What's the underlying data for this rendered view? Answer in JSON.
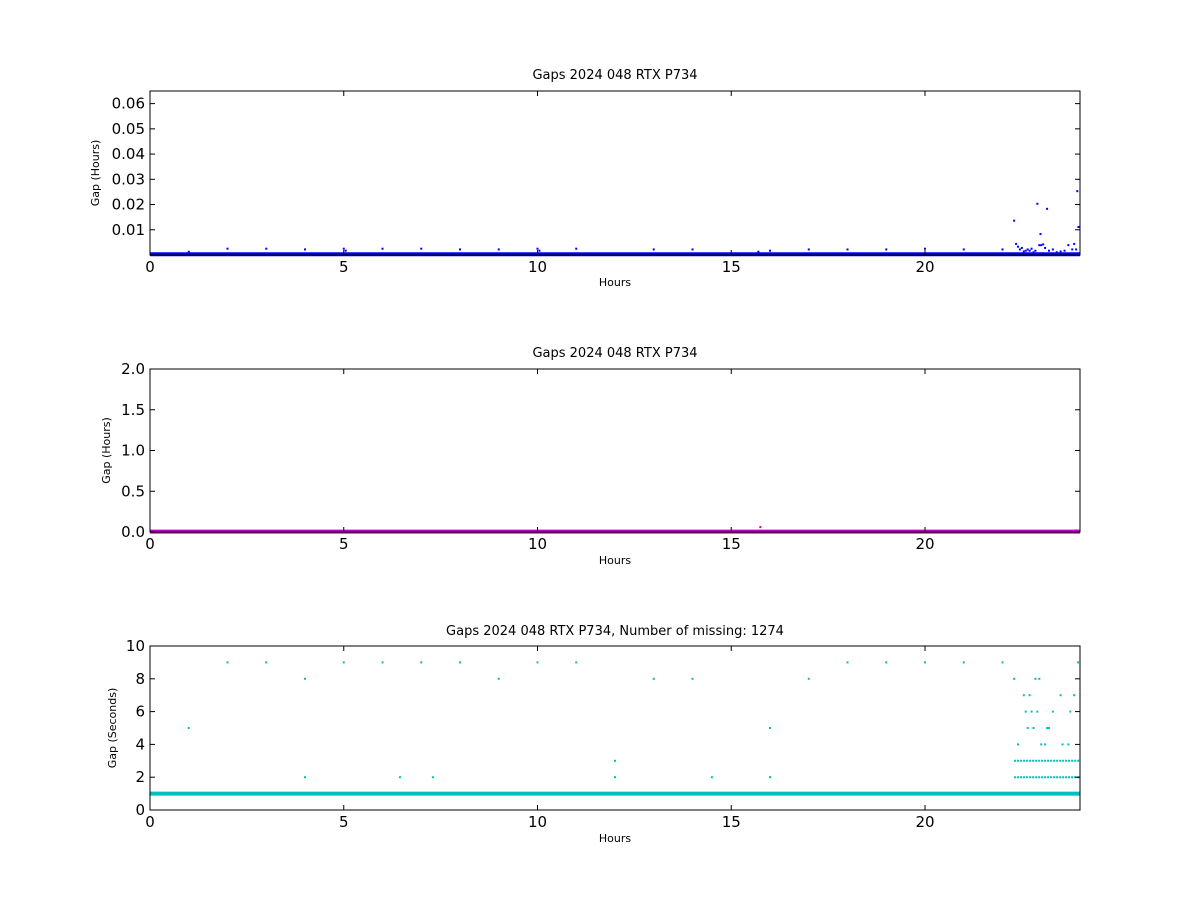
{
  "chart_data": [
    {
      "type": "scatter",
      "title": "Gaps 2024 048 RTX  P734",
      "xlabel": "Hours",
      "ylabel": "Gap (Hours)",
      "xlim": [
        0,
        24
      ],
      "ylim": [
        0,
        0.065
      ],
      "xticks": [
        0,
        5,
        10,
        15,
        20
      ],
      "xtick_labels": [
        "0",
        "5",
        "10",
        "15",
        "20"
      ],
      "yticks": [
        0.01,
        0.02,
        0.03,
        0.04,
        0.05,
        0.06
      ],
      "ytick_labels": [
        "0.01",
        "0.02",
        "0.03",
        "0.04",
        "0.05",
        "0.06"
      ],
      "grid": false,
      "color": "#0000ff",
      "baseline": {
        "y": 0.0003,
        "x_start": 0,
        "x_end": 24
      },
      "points": [
        [
          1,
          0.0013
        ],
        [
          2,
          0.0025
        ],
        [
          3,
          0.0025
        ],
        [
          4,
          0.0022
        ],
        [
          5,
          0.0025
        ],
        [
          5.05,
          0.0017
        ],
        [
          6,
          0.0025
        ],
        [
          7,
          0.0025
        ],
        [
          8,
          0.0022
        ],
        [
          9,
          0.0022
        ],
        [
          10,
          0.0025
        ],
        [
          10.05,
          0.0017
        ],
        [
          11,
          0.0025
        ],
        [
          13,
          0.0022
        ],
        [
          14,
          0.0022
        ],
        [
          15.7,
          0.0013
        ],
        [
          16,
          0.0017
        ],
        [
          17,
          0.0022
        ],
        [
          18,
          0.0022
        ],
        [
          19,
          0.0022
        ],
        [
          20,
          0.0025
        ],
        [
          21,
          0.0022
        ],
        [
          22,
          0.0022
        ],
        [
          22.3,
          0.0136
        ],
        [
          22.35,
          0.0044
        ],
        [
          22.4,
          0.0033
        ],
        [
          22.45,
          0.0022
        ],
        [
          22.5,
          0.0028
        ],
        [
          22.55,
          0.0014
        ],
        [
          22.6,
          0.0017
        ],
        [
          22.65,
          0.0022
        ],
        [
          22.7,
          0.0017
        ],
        [
          22.75,
          0.0025
        ],
        [
          22.8,
          0.0011
        ],
        [
          22.85,
          0.0017
        ],
        [
          22.9,
          0.0203
        ],
        [
          22.95,
          0.0039
        ],
        [
          22.98,
          0.0083
        ],
        [
          23.0,
          0.0039
        ],
        [
          23.05,
          0.0042
        ],
        [
          23.1,
          0.0028
        ],
        [
          23.15,
          0.0183
        ],
        [
          23.2,
          0.0017
        ],
        [
          23.3,
          0.0022
        ],
        [
          23.4,
          0.0011
        ],
        [
          23.5,
          0.0014
        ],
        [
          23.6,
          0.0017
        ],
        [
          23.7,
          0.0039
        ],
        [
          23.8,
          0.0022
        ],
        [
          23.85,
          0.0044
        ],
        [
          23.9,
          0.0022
        ],
        [
          23.93,
          0.0253
        ],
        [
          23.96,
          0.0111
        ]
      ]
    },
    {
      "type": "scatter",
      "title": "Gaps 2024 048 RTX  P734",
      "xlabel": "Hours",
      "ylabel": "Gap (Hours)",
      "xlim": [
        0,
        24
      ],
      "ylim": [
        0,
        2.0
      ],
      "xticks": [
        0,
        5,
        10,
        15,
        20
      ],
      "xtick_labels": [
        "0",
        "5",
        "10",
        "15",
        "20"
      ],
      "yticks": [
        0.0,
        0.5,
        1.0,
        1.5,
        2.0
      ],
      "ytick_labels": [
        "0.0",
        "0.5",
        "1.0",
        "1.5",
        "2.0"
      ],
      "grid": false,
      "color": "#bf00bf",
      "baseline": {
        "y": 0.005,
        "x_start": 0,
        "x_end": 24
      },
      "points": [
        [
          15.75,
          0.06
        ],
        [
          23.9,
          0.02
        ],
        [
          22.9,
          0.012
        ]
      ]
    },
    {
      "type": "scatter",
      "title": "Gaps 2024 048 RTX  P734, Number of missing: 1274",
      "xlabel": "Hours",
      "ylabel": "Gap (Seconds)",
      "xlim": [
        0,
        24
      ],
      "ylim": [
        0,
        10
      ],
      "xticks": [
        0,
        5,
        10,
        15,
        20
      ],
      "xtick_labels": [
        "0",
        "5",
        "10",
        "15",
        "20"
      ],
      "yticks": [
        0,
        2,
        4,
        6,
        8,
        10
      ],
      "ytick_labels": [
        "0",
        "2",
        "4",
        "6",
        "8",
        "10"
      ],
      "grid": false,
      "color": "#00bfbf",
      "baseline": {
        "y": 1,
        "x_start": 0,
        "x_end": 24
      },
      "points": [
        [
          1,
          5
        ],
        [
          2,
          9
        ],
        [
          3,
          9
        ],
        [
          4,
          8
        ],
        [
          4,
          2
        ],
        [
          5,
          9
        ],
        [
          6,
          9
        ],
        [
          6.45,
          2
        ],
        [
          7,
          9
        ],
        [
          7.3,
          2
        ],
        [
          8,
          9
        ],
        [
          9,
          8
        ],
        [
          10,
          9
        ],
        [
          11,
          9
        ],
        [
          12,
          3
        ],
        [
          12,
          2
        ],
        [
          13,
          8
        ],
        [
          14,
          8
        ],
        [
          14.5,
          2
        ],
        [
          16,
          5
        ],
        [
          16,
          2
        ],
        [
          17,
          8
        ],
        [
          18,
          9
        ],
        [
          19,
          9
        ],
        [
          20,
          9
        ],
        [
          21,
          9
        ],
        [
          22,
          9
        ],
        [
          22.3,
          8
        ],
        [
          22.4,
          4
        ],
        [
          22.55,
          7
        ],
        [
          22.6,
          6
        ],
        [
          22.65,
          5
        ],
        [
          22.7,
          7
        ],
        [
          22.75,
          6
        ],
        [
          22.8,
          5
        ],
        [
          22.85,
          8
        ],
        [
          22.9,
          6
        ],
        [
          22.95,
          8
        ],
        [
          23.0,
          4
        ],
        [
          23.1,
          4
        ],
        [
          23.15,
          5
        ],
        [
          23.2,
          5
        ],
        [
          23.3,
          6
        ],
        [
          23.5,
          7
        ],
        [
          23.55,
          4
        ],
        [
          23.7,
          4
        ],
        [
          23.75,
          6
        ],
        [
          23.85,
          7
        ],
        [
          23.95,
          9
        ]
      ],
      "bands": [
        {
          "y": 2,
          "x_start": 22.3,
          "x_end": 24
        },
        {
          "y": 3,
          "x_start": 22.3,
          "x_end": 24
        }
      ]
    }
  ]
}
